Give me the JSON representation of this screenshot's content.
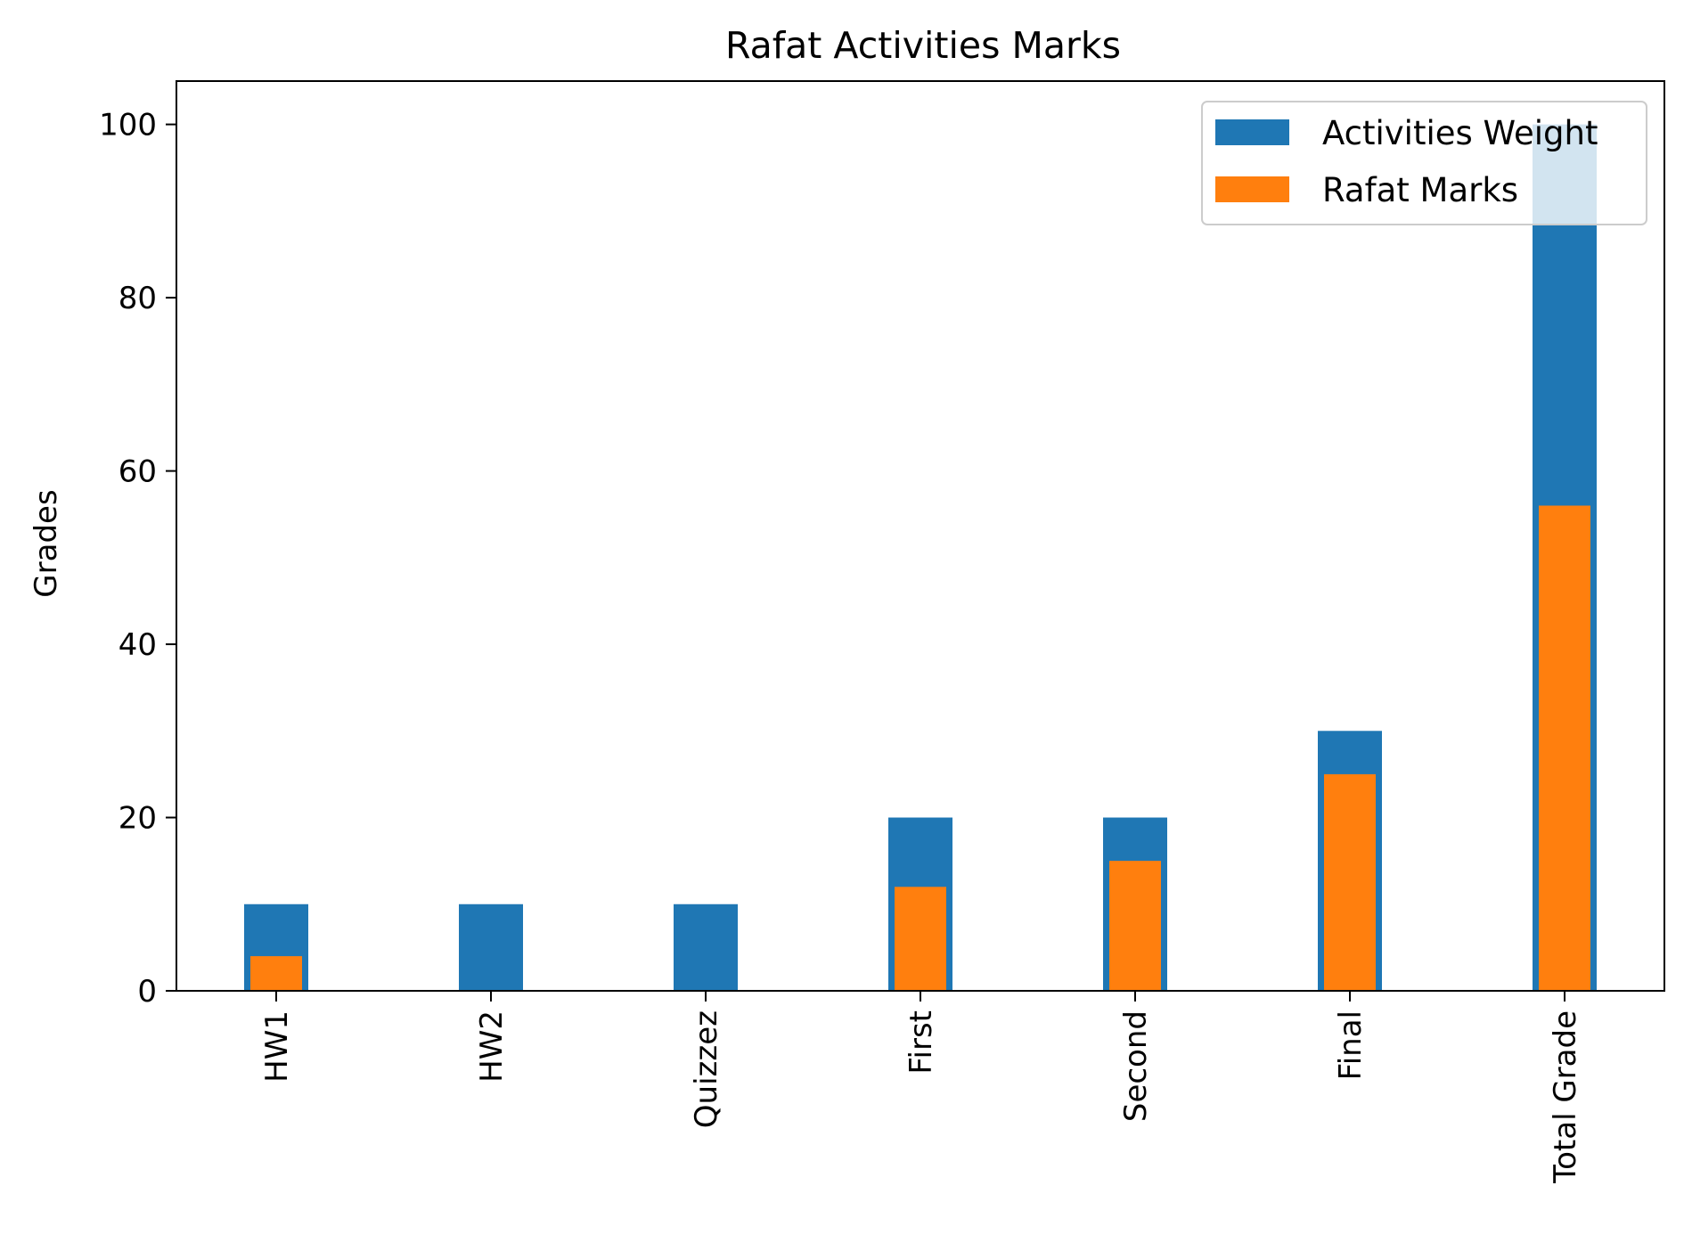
{
  "chart_data": {
    "type": "bar",
    "title": "Rafat Activities Marks",
    "xlabel": "",
    "ylabel": "Grades",
    "categories": [
      "HW1",
      "HW2",
      "Quizzez",
      "First",
      "Second",
      "Final",
      "Total Grade"
    ],
    "series": [
      {
        "name": "Activities Weight",
        "color": "#1f77b4",
        "values": [
          10,
          10,
          10,
          20,
          20,
          30,
          100
        ]
      },
      {
        "name": "Rafat Marks",
        "color": "#ff7f0e",
        "values": [
          4,
          0,
          0,
          12,
          15,
          25,
          56
        ]
      }
    ],
    "ylim": [
      0,
      105
    ],
    "yticks": [
      0,
      20,
      40,
      60,
      80,
      100
    ],
    "grid": false,
    "legend_position": "top-right",
    "xtick_rotation": "vertical"
  }
}
